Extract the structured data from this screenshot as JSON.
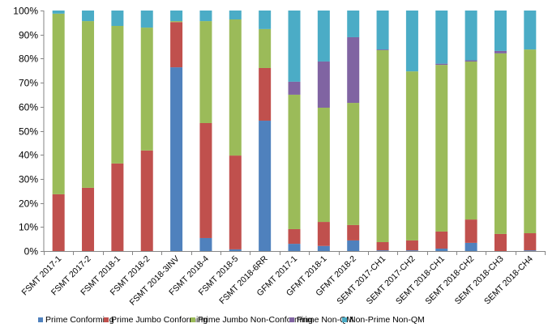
{
  "chart_data": {
    "type": "bar",
    "stacked": true,
    "percent_stacked": true,
    "title": "",
    "xlabel": "",
    "ylabel": "",
    "ylim": [
      0,
      100
    ],
    "yticks": [
      "0%",
      "10%",
      "20%",
      "30%",
      "40%",
      "50%",
      "60%",
      "70%",
      "80%",
      "90%",
      "100%"
    ],
    "grid": false,
    "legend_position": "bottom",
    "categories": [
      "FSMT 2017-1",
      "FSMT 2017-2",
      "FSMT 2018-1",
      "FSMT 2018-2",
      "FSMT 2018-3INV",
      "FSMT 2018-4",
      "FSMT 2018-5",
      "FSMT 2018-6RR",
      "GFMT 2017-1",
      "GFMT 2018-1",
      "GFMT 2018-2",
      "SEMT 2017-CH1",
      "SEMT 2017-CH2",
      "SEMT 2018-CH1",
      "SEMT 2018-CH2",
      "SEMT 2018-CH3",
      "SEMT 2018-CH4"
    ],
    "series": [
      {
        "name": "Prime Conforming",
        "color": "#4F81BD",
        "values": [
          0,
          0,
          0,
          0,
          76.4,
          5.4,
          0.7,
          54.2,
          3.0,
          2.1,
          4.4,
          0.3,
          0.3,
          1.0,
          3.4,
          0,
          0.3
        ]
      },
      {
        "name": "Prime Jumbo Conforming",
        "color": "#C0504D",
        "values": [
          23.6,
          26.3,
          36.4,
          41.8,
          18.8,
          47.8,
          39.0,
          21.9,
          6.1,
          10.0,
          6.4,
          3.4,
          4.1,
          7.1,
          9.7,
          7.1,
          7.1
        ]
      },
      {
        "name": "Prime Jumbo Non-Conforming",
        "color": "#9BBB59",
        "values": [
          75.1,
          69.3,
          57.2,
          51.1,
          0.4,
          42.4,
          56.6,
          16.2,
          55.9,
          47.5,
          50.8,
          79.8,
          70.3,
          69.3,
          65.7,
          75.1,
          76.4
        ]
      },
      {
        "name": "Prime Non-QM",
        "color": "#8064A2",
        "values": [
          0,
          0,
          0,
          0,
          0,
          0,
          0,
          0,
          5.4,
          19.2,
          27.3,
          0.3,
          0,
          0.5,
          0.5,
          1.0,
          0
        ]
      },
      {
        "name": "Non-Prime Non-QM",
        "color": "#4BACC6",
        "values": [
          1.3,
          4.4,
          6.4,
          7.1,
          4.4,
          4.4,
          3.7,
          7.7,
          29.6,
          21.2,
          11.1,
          16.2,
          25.3,
          22.1,
          20.7,
          16.8,
          16.2
        ]
      }
    ]
  }
}
